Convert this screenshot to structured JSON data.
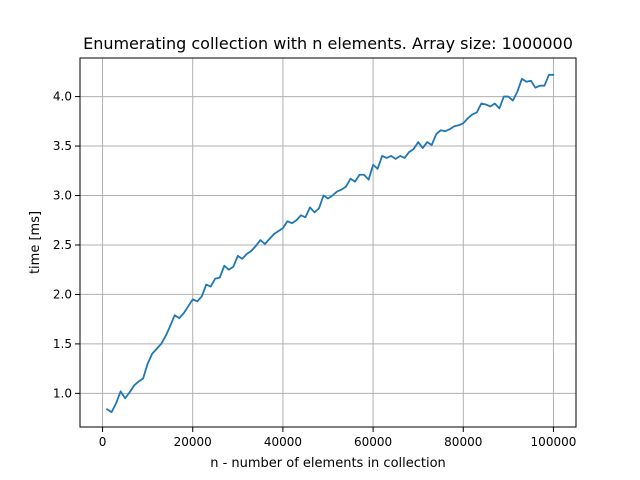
{
  "chart_data": {
    "type": "line",
    "title": "Enumerating collection with n elements. Array size: 1000000",
    "xlabel": "n - number of elements in collection",
    "ylabel": "time [ms]",
    "xlim": [
      -5000,
      105000
    ],
    "ylim": [
      0.66,
      4.39
    ],
    "grid": true,
    "x_ticks": [
      0,
      20000,
      40000,
      60000,
      80000,
      100000
    ],
    "y_ticks": [
      1.0,
      1.5,
      2.0,
      2.5,
      3.0,
      3.5,
      4.0
    ],
    "series": [
      {
        "color": "#1f77b4",
        "x": [
          1000,
          2000,
          3000,
          4000,
          5000,
          6000,
          7000,
          8000,
          9000,
          10000,
          11000,
          12000,
          13000,
          14000,
          15000,
          16000,
          17000,
          18000,
          19000,
          20000,
          21000,
          22000,
          23000,
          24000,
          25000,
          26000,
          27000,
          28000,
          29000,
          30000,
          31000,
          32000,
          33000,
          34000,
          35000,
          36000,
          37000,
          38000,
          39000,
          40000,
          41000,
          42000,
          43000,
          44000,
          45000,
          46000,
          47000,
          48000,
          49000,
          50000,
          51000,
          52000,
          53000,
          54000,
          55000,
          56000,
          57000,
          58000,
          59000,
          60000,
          61000,
          62000,
          63000,
          64000,
          65000,
          66000,
          67000,
          68000,
          69000,
          70000,
          71000,
          72000,
          73000,
          74000,
          75000,
          76000,
          77000,
          78000,
          79000,
          80000,
          81000,
          82000,
          83000,
          84000,
          85000,
          86000,
          87000,
          88000,
          89000,
          90000,
          91000,
          92000,
          93000,
          94000,
          95000,
          96000,
          97000,
          98000,
          99000,
          100000
        ],
        "y": [
          0.84,
          0.81,
          0.9,
          1.02,
          0.95,
          1.01,
          1.08,
          1.12,
          1.15,
          1.3,
          1.4,
          1.45,
          1.5,
          1.58,
          1.68,
          1.79,
          1.76,
          1.81,
          1.88,
          1.95,
          1.93,
          1.98,
          2.1,
          2.08,
          2.16,
          2.17,
          2.29,
          2.25,
          2.28,
          2.39,
          2.36,
          2.41,
          2.44,
          2.49,
          2.55,
          2.51,
          2.56,
          2.61,
          2.64,
          2.67,
          2.74,
          2.72,
          2.75,
          2.8,
          2.78,
          2.88,
          2.83,
          2.87,
          3.0,
          2.97,
          3.0,
          3.04,
          3.06,
          3.09,
          3.17,
          3.14,
          3.21,
          3.21,
          3.16,
          3.31,
          3.27,
          3.4,
          3.38,
          3.4,
          3.37,
          3.4,
          3.38,
          3.44,
          3.47,
          3.54,
          3.48,
          3.54,
          3.51,
          3.62,
          3.66,
          3.65,
          3.67,
          3.7,
          3.71,
          3.73,
          3.78,
          3.82,
          3.84,
          3.93,
          3.92,
          3.9,
          3.93,
          3.88,
          4.0,
          4.0,
          3.96,
          4.05,
          4.18,
          4.15,
          4.16,
          4.09,
          4.11,
          4.11,
          4.22,
          4.22
        ]
      }
    ]
  }
}
